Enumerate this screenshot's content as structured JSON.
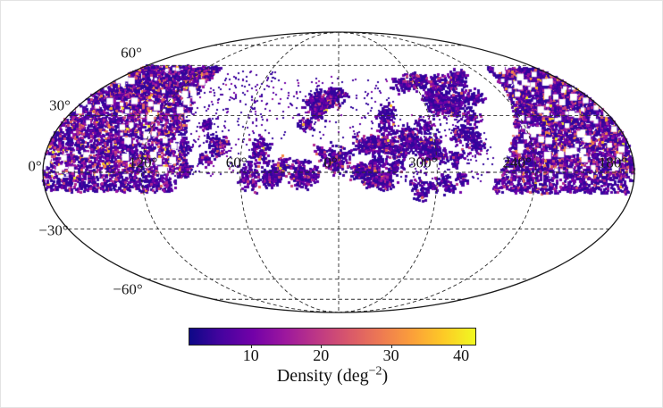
{
  "chart_data": {
    "type": "heatmap",
    "title": "",
    "projection": "mollweide",
    "orientation": "astronomical, longitude increases to the left",
    "colorbar": {
      "label_prefix": "Density (deg",
      "label_exponent": "−2",
      "label_suffix": ")",
      "ticks": [
        10,
        20,
        30,
        40
      ],
      "vmin": 1.1,
      "vmax": 41.9,
      "colormap": "plasma",
      "gradient_stops": [
        "#0d0887",
        "#46039f",
        "#7201a8",
        "#9c179e",
        "#bd3786",
        "#d8576b",
        "#ed7953",
        "#fb9f3a",
        "#fdca26",
        "#f0f921"
      ]
    },
    "graticule": {
      "style": "dashed",
      "lat_lines_deg": [
        75,
        60,
        30,
        0,
        -30,
        -60,
        -75
      ],
      "lon_lines_deg": [
        120,
        60,
        0,
        -60,
        -120
      ],
      "lat_tick_labels": [
        {
          "lat": 60,
          "text": "60°"
        },
        {
          "lat": 30,
          "text": "30°"
        },
        {
          "lat": 0,
          "text": "0°"
        },
        {
          "lat": -30,
          "text": "−30°"
        },
        {
          "lat": -60,
          "text": "−60°"
        }
      ],
      "lon_tick_labels": [
        {
          "lon": 120,
          "text": "120°"
        },
        {
          "lon": 60,
          "text": "60°"
        },
        {
          "lon": 0,
          "text": "0°"
        },
        {
          "lon": -60,
          "text": "300°"
        },
        {
          "lon": -120,
          "text": "240°"
        },
        {
          "lon": -180,
          "text": "180°"
        }
      ]
    },
    "point_palette": {
      "colors": [
        "#30059c",
        "#45039e",
        "#5901a5",
        "#7201a8",
        "#9511a1",
        "#b02991",
        "#ca457c",
        "#e0655e",
        "#f58a42",
        "#fcb827",
        "#f2e328"
      ],
      "base_weights": [
        30,
        17,
        12,
        10,
        8,
        7,
        6,
        4,
        2.5,
        1.6,
        0.9
      ]
    },
    "footprint_regions": [
      {
        "id": "north-left-dense",
        "mode": "field",
        "lon": [
          91,
          180
        ],
        "lat": [
          -3,
          59
        ],
        "shear": 0.28,
        "n": 4300,
        "holes": 80,
        "heat": 1.0,
        "size": 3
      },
      {
        "id": "left-inner-clumps",
        "mode": "clumps",
        "lon": [
          72,
          96
        ],
        "lat": [
          0,
          32
        ],
        "k": 7,
        "m": 38,
        "r": 6,
        "heat": 0.45,
        "size": 3
      },
      {
        "id": "left-subequator-fringe",
        "mode": "field",
        "lon": [
          100,
          180
        ],
        "lat": [
          -10,
          -3
        ],
        "n": 430,
        "holes": 0,
        "heat": 0.5,
        "size": 3
      },
      {
        "id": "left-outskirt-specks",
        "mode": "specks",
        "lon": [
          50,
          100
        ],
        "lat": [
          -2,
          56
        ],
        "n": 240,
        "heat": 0.12,
        "size": 2
      },
      {
        "id": "central-belt-clumps",
        "mode": "clumps",
        "lon": [
          -52,
          58
        ],
        "lat": [
          -7,
          18
        ],
        "k": 30,
        "m": 55,
        "r": 8,
        "heat": 0.55,
        "size": 3
      },
      {
        "id": "central-north-arm",
        "mode": "clumps",
        "lon": [
          0,
          28
        ],
        "lat": [
          16,
          42
        ],
        "k": 9,
        "m": 50,
        "r": 7,
        "heat": 0.5,
        "size": 3
      },
      {
        "id": "central-mid-clumps",
        "mode": "clumps",
        "lon": [
          -48,
          -15
        ],
        "lat": [
          10,
          40
        ],
        "k": 10,
        "m": 42,
        "r": 7,
        "heat": 0.45,
        "size": 3
      },
      {
        "id": "central-north-specks",
        "mode": "specks",
        "lon": [
          -40,
          58
        ],
        "lat": [
          18,
          52
        ],
        "n": 170,
        "heat": 0.12,
        "size": 2
      },
      {
        "id": "right-patchy-clumps",
        "mode": "clumps",
        "lon": [
          -100,
          -45
        ],
        "lat": [
          5,
          56
        ],
        "k": 26,
        "m": 55,
        "r": 8,
        "heat": 0.5,
        "size": 3
      },
      {
        "id": "right-dense",
        "mode": "field",
        "lon": [
          -180,
          -99
        ],
        "lat": [
          -3,
          58
        ],
        "shear": -0.6,
        "n": 4800,
        "holes": 90,
        "heat": 0.95,
        "size": 3
      },
      {
        "id": "right-subequator-fringe",
        "mode": "field",
        "lon": [
          -180,
          -95
        ],
        "lat": [
          -11,
          -3
        ],
        "n": 460,
        "holes": 0,
        "heat": 0.5,
        "size": 3
      },
      {
        "id": "right-equator-specks",
        "mode": "specks",
        "lon": [
          -95,
          -38
        ],
        "lat": [
          -6,
          30
        ],
        "n": 220,
        "heat": 0.12,
        "size": 2
      },
      {
        "id": "center-right-subequator-bits",
        "mode": "clumps",
        "lon": [
          -75,
          -45
        ],
        "lat": [
          -12,
          -2
        ],
        "k": 6,
        "m": 32,
        "r": 6,
        "heat": 0.4,
        "size": 3
      }
    ]
  }
}
